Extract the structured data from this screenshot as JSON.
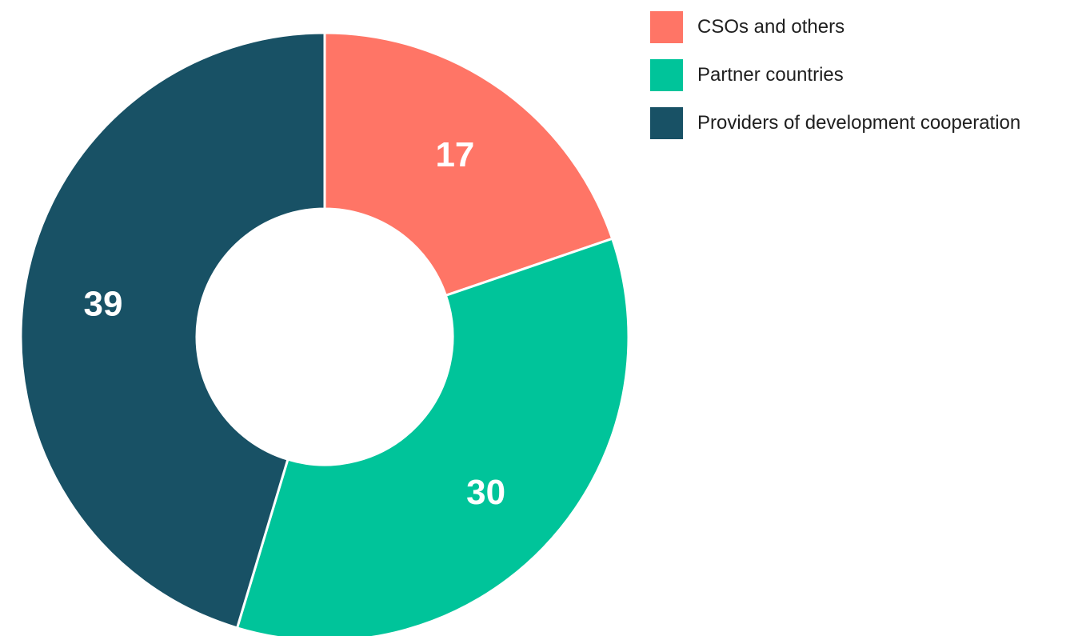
{
  "chart_data": {
    "type": "pie",
    "variant": "donut",
    "title": "",
    "categories": [
      "CSOs and others",
      "Partner countries",
      "Providers of development cooperation"
    ],
    "values": [
      17,
      30,
      39
    ],
    "colors": [
      "#ff7566",
      "#00c49a",
      "#185165"
    ],
    "start": "12 o'clock",
    "direction": "clockwise",
    "legend_position": "top-right",
    "data_labels": [
      "17",
      "30",
      "39"
    ]
  }
}
